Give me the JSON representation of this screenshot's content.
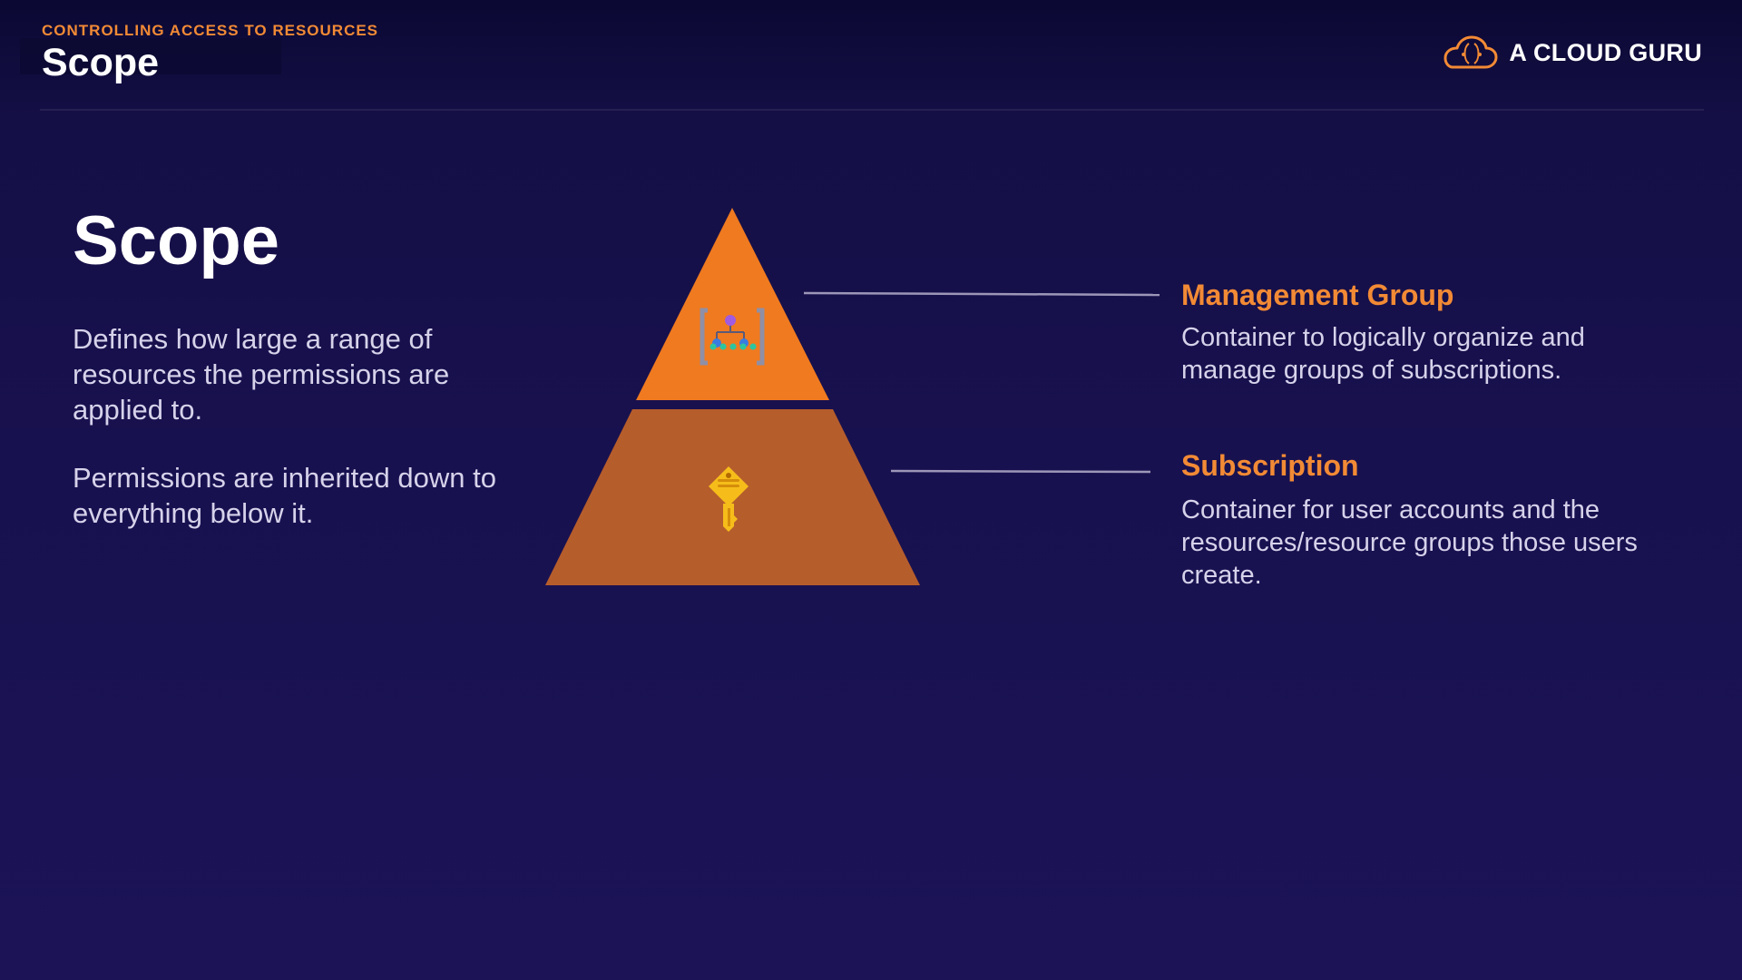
{
  "header": {
    "eyebrow": "CONTROLLING ACCESS TO RESOURCES",
    "title": "Scope",
    "brand": "A CLOUD GURU"
  },
  "main": {
    "title": "Scope",
    "paragraphs": [
      "Defines how large a range of resources the permissions are applied to.",
      "Permissions are inherited down to everything below it."
    ]
  },
  "pyramid": {
    "levels": [
      {
        "label": "Management Group",
        "description": "Container to logically organize and manage groups of subscriptions.",
        "icon": "management-group-icon",
        "color": "#f07a1f"
      },
      {
        "label": "Subscription",
        "description": "Container for user accounts and the resources/resource groups those users create.",
        "icon": "key-icon",
        "color": "#b65d2c"
      }
    ]
  },
  "colors": {
    "accent": "#f28a35",
    "background": "#18114f",
    "text_muted": "#d6d2ea"
  }
}
